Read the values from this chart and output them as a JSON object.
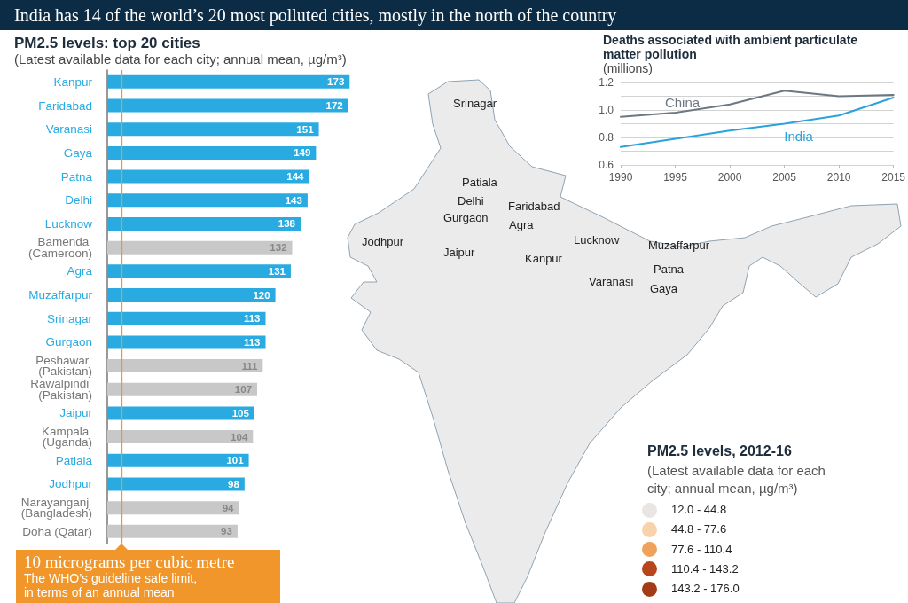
{
  "chart_data": [
    {
      "type": "other",
      "title": "India has 14 of the world’s 20 most polluted cities, mostly in the north of the country"
    },
    {
      "type": "bar",
      "orientation": "horizontal",
      "title": "PM2.5 levels: top 20 cities",
      "subtitle": "(Latest available data for each city; annual mean, µg/m³)",
      "categories": [
        "Kanpur",
        "Faridabad",
        "Varanasi",
        "Gaya",
        "Patna",
        "Delhi",
        "Lucknow",
        "Bamenda (Cameroon)",
        "Agra",
        "Muzaffarpur",
        "Srinagar",
        "Gurgaon",
        "Peshawar (Pakistan)",
        "Rawalpindi (Pakistan)",
        "Jaipur",
        "Kampala (Uganda)",
        "Patiala",
        "Jodhpur",
        "Narayanganj (Bangladesh)",
        "Doha (Qatar)"
      ],
      "values": [
        173,
        172,
        151,
        149,
        144,
        143,
        138,
        132,
        131,
        120,
        113,
        113,
        111,
        107,
        105,
        104,
        101,
        98,
        94,
        93
      ],
      "colors": [
        "#29abe2",
        "#29abe2",
        "#29abe2",
        "#29abe2",
        "#29abe2",
        "#29abe2",
        "#29abe2",
        "#c8c8c8",
        "#29abe2",
        "#29abe2",
        "#29abe2",
        "#29abe2",
        "#c8c8c8",
        "#c8c8c8",
        "#29abe2",
        "#c8c8c8",
        "#29abe2",
        "#29abe2",
        "#c8c8c8",
        "#c8c8c8"
      ],
      "data_labels": true,
      "ref_lines": [
        {
          "axis": "x",
          "value": 10,
          "label": "10 micrograms per cubic metre",
          "color": "#f0962a"
        }
      ],
      "annotations": [
        "The WHO’s guideline safe limit, in terms of an annual mean"
      ]
    },
    {
      "type": "other",
      "title": "PM2.5 levels, 2012-16",
      "subtitle": "(Latest available data for each city; annual mean, µg/m³)",
      "categories": [
        "12.0 - 44.8",
        "44.8 - 77.6",
        "77.6 - 110.4",
        "110.4 - 143.2",
        "143.2 - 176.0"
      ],
      "colors": [
        "#e9e5e0",
        "#f7d2ab",
        "#f0a25d",
        "#b8461d",
        "#a33c16"
      ],
      "annotations": [
        "Srinagar",
        "Patiala",
        "Delhi",
        "Faridabad",
        "Gurgaon",
        "Agra",
        "Jodhpur",
        "Jaipur",
        "Lucknow",
        "Kanpur",
        "Muzaffarpur",
        "Patna",
        "Varanasi",
        "Gaya"
      ]
    },
    {
      "type": "line",
      "title": "Deaths associated with ambient particulate matter pollution",
      "subtitle": "(millions)",
      "x": [
        1990,
        1995,
        2000,
        2005,
        2010,
        2015
      ],
      "series": [
        {
          "name": "China",
          "color": "#6d7783",
          "values": [
            0.95,
            0.98,
            1.04,
            1.14,
            1.1,
            1.11
          ]
        },
        {
          "name": "India",
          "color": "#2aa3dc",
          "values": [
            0.73,
            0.79,
            0.85,
            0.9,
            0.96,
            1.09
          ]
        }
      ],
      "xlim": [
        1990,
        2015
      ],
      "xticks": [
        1990,
        1995,
        2000,
        2005,
        2010,
        2015
      ],
      "ylim": [
        0.6,
        1.2
      ],
      "yticks": [
        0.6,
        {
          "value": 0.7,
          "label": null
        },
        0.8,
        {
          "value": 0.9,
          "label": null
        },
        {
          "value": 1,
          "label": "1.0"
        },
        {
          "value": 1.1,
          "label": null
        },
        1.2
      ],
      "grid": "y"
    }
  ]
}
